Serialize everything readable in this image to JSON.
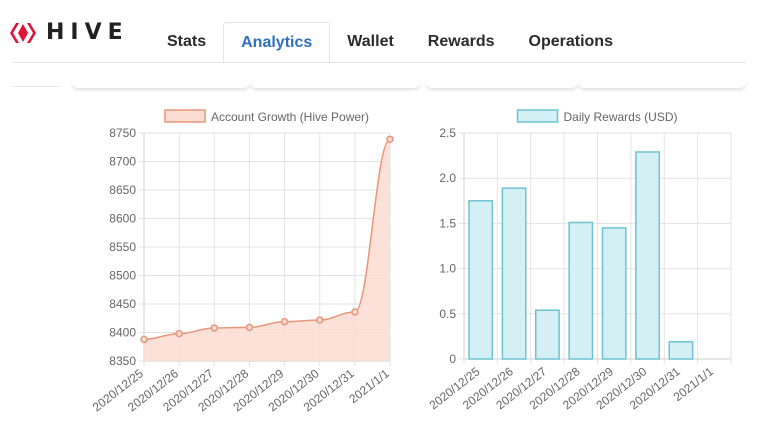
{
  "brand": {
    "name": "HIVE",
    "logo_icon": "hive-logo-icon",
    "color": "#e31337"
  },
  "tabs": [
    {
      "label": "Stats",
      "active": false
    },
    {
      "label": "Analytics",
      "active": true
    },
    {
      "label": "Wallet",
      "active": false
    },
    {
      "label": "Rewards",
      "active": false
    },
    {
      "label": "Operations",
      "active": false
    }
  ],
  "chart_data": [
    {
      "type": "area",
      "legend": "Account Growth (Hive Power)",
      "categories": [
        "2020/12/25",
        "2020/12/26",
        "2020/12/27",
        "2020/12/28",
        "2020/12/29",
        "2020/12/30",
        "2020/12/31",
        "2021/1/1"
      ],
      "values": [
        8388,
        8398,
        8408,
        8409,
        8419,
        8422,
        8436,
        8739
      ],
      "ylim": [
        8350,
        8750
      ],
      "yticks": [
        "8350",
        "8400",
        "8450",
        "8500",
        "8550",
        "8600",
        "8650",
        "8700",
        "8750"
      ],
      "grid": true,
      "legend_position": "top",
      "colors": {
        "line": "#e8967a",
        "fill": "#fbdcd2"
      }
    },
    {
      "type": "bar",
      "legend": "Daily Rewards (USD)",
      "categories": [
        "2020/12/25",
        "2020/12/26",
        "2020/12/27",
        "2020/12/28",
        "2020/12/29",
        "2020/12/30",
        "2020/12/31",
        "2021/1/1"
      ],
      "values": [
        1.75,
        1.89,
        0.54,
        1.51,
        1.45,
        2.29,
        0.19,
        0
      ],
      "ylim": [
        0,
        2.5
      ],
      "yticks": [
        "0",
        "0.5",
        "1.0",
        "1.5",
        "2.0",
        "2.5"
      ],
      "grid": true,
      "legend_position": "top",
      "colors": {
        "line": "#6cc3d1",
        "fill": "#d4f0f5"
      }
    }
  ]
}
